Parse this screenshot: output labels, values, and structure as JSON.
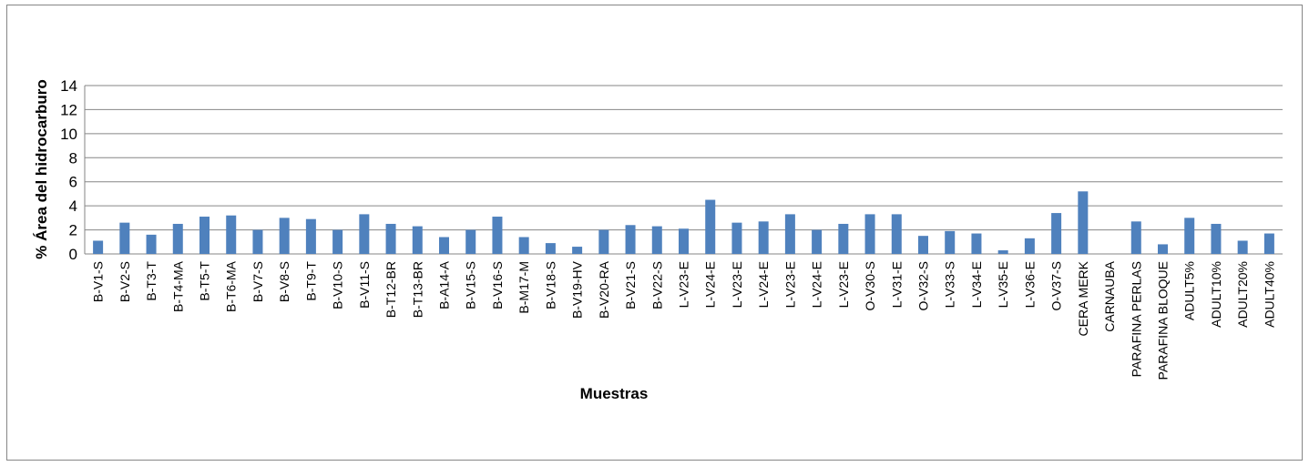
{
  "chart_data": {
    "type": "bar",
    "x_label": "Muestras",
    "y_label": "% Área del hidrocarburo",
    "categories": [
      "B-V1-S",
      "B-V2-S",
      "B-T3-T",
      "B-T4-MA",
      "B-T5-T",
      "B-T6-MA",
      "B-V7-S",
      "B-V8-S",
      "B-T9-T",
      "B-V10-S",
      "B-V11-S",
      "B-T12-BR",
      "B-T13-BR",
      "B-A14-A",
      "B-V15-S",
      "B-V16-S",
      "B-M17-M",
      "B-V18-S",
      "B-V19-HV",
      "B-V20-RA",
      "B-V21-S",
      "B-V22-S",
      "L-V23-E",
      "L-V24-E",
      "L-V23-E",
      "L-V24-E",
      "L-V23-E",
      "L-V24-E",
      "L-V23-E",
      "O-V30-S",
      "L-V31-E",
      "O-V32-S",
      "L-V33-S",
      "L-V34-E",
      "L-V35-E",
      "L-V36-E",
      "O-V37-S",
      "CERA MERK",
      "CARNAUBA",
      "PARAFINA PERLAS",
      "PARAFINA BLOQUE",
      "ADULT5%",
      "ADULT10%",
      "ADULT20%",
      "ADULT40%"
    ],
    "values": [
      1.1,
      2.6,
      1.6,
      2.5,
      3.1,
      3.2,
      2.0,
      3.0,
      2.9,
      2.0,
      3.3,
      2.5,
      2.3,
      1.4,
      2.0,
      3.1,
      1.4,
      0.9,
      0.6,
      2.0,
      2.4,
      2.3,
      2.1,
      4.5,
      2.6,
      2.7,
      3.3,
      2.0,
      2.5,
      3.3,
      3.3,
      1.5,
      1.9,
      1.7,
      0.3,
      1.3,
      3.4,
      5.2,
      0,
      2.7,
      0.8,
      3.0,
      2.5,
      1.1,
      1.7
    ],
    "color": "#4f81bd",
    "ylim": [
      0,
      14
    ],
    "yticks": [
      0,
      2,
      4,
      6,
      8,
      10,
      12,
      14
    ],
    "grid": true
  }
}
